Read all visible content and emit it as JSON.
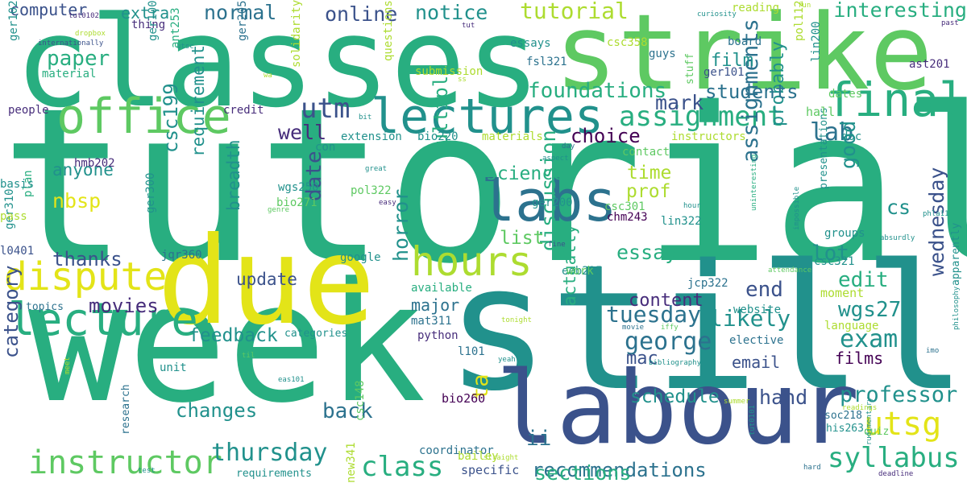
{
  "word_cloud": {
    "colors": {
      "background": "#ffffff",
      "purple": "#440154",
      "indigo": "#472d7b",
      "blue": "#3b528b",
      "steel": "#2c728e",
      "teal": "#21918c",
      "green": "#28ae80",
      "lightgreen": "#5ec962",
      "lime": "#addc30",
      "yellow": "#e3e418"
    },
    "words": [
      {
        "text": "tutorials"
      },
      {
        "text": "classes"
      },
      {
        "text": "strike"
      },
      {
        "text": "still"
      },
      {
        "text": "week"
      },
      {
        "text": "due"
      },
      {
        "text": "labour"
      },
      {
        "text": "lectures"
      },
      {
        "text": "office"
      },
      {
        "text": "final"
      },
      {
        "text": "labs"
      },
      {
        "text": "hours"
      },
      {
        "text": "lecture"
      },
      {
        "text": "dispute"
      },
      {
        "text": "instructor"
      },
      {
        "text": "assignment"
      },
      {
        "text": "utm"
      },
      {
        "text": "tutorial"
      },
      {
        "text": "paper"
      },
      {
        "text": "foundations"
      },
      {
        "text": "online"
      },
      {
        "text": "notice"
      },
      {
        "text": "normal"
      },
      {
        "text": "mark"
      },
      {
        "text": "interesting"
      },
      {
        "text": "lab"
      },
      {
        "text": "exam"
      },
      {
        "text": "utsg"
      },
      {
        "text": "syllabus"
      },
      {
        "text": "professor"
      },
      {
        "text": "class"
      },
      {
        "text": "thursday"
      },
      {
        "text": "recommendations"
      },
      {
        "text": "george"
      },
      {
        "text": "tuesday"
      },
      {
        "text": "likely"
      },
      {
        "text": "wednesday"
      },
      {
        "text": "hand"
      },
      {
        "text": "sections"
      },
      {
        "text": "schedule"
      },
      {
        "text": "changes"
      },
      {
        "text": "category"
      },
      {
        "text": "movies"
      },
      {
        "text": "feedback"
      },
      {
        "text": "back"
      },
      {
        "text": "ta"
      },
      {
        "text": "ii"
      },
      {
        "text": "date"
      },
      {
        "text": "discussion"
      },
      {
        "text": "horror"
      },
      {
        "text": "multiple"
      },
      {
        "text": "essay"
      },
      {
        "text": "edit"
      },
      {
        "text": "content"
      },
      {
        "text": "wgs271"
      },
      {
        "text": "end"
      },
      {
        "text": "lot"
      },
      {
        "text": "well"
      },
      {
        "text": "good"
      },
      {
        "text": "probably"
      },
      {
        "text": "assignments"
      },
      {
        "text": "time"
      },
      {
        "text": "prof"
      },
      {
        "text": "choice"
      },
      {
        "text": "students"
      },
      {
        "text": "film"
      },
      {
        "text": "cs"
      },
      {
        "text": "science"
      },
      {
        "text": "list"
      },
      {
        "text": "anyone"
      },
      {
        "text": "csc199"
      },
      {
        "text": "requirement"
      },
      {
        "text": "breadth"
      },
      {
        "text": "update"
      },
      {
        "text": "thanks"
      },
      {
        "text": "nbsp"
      },
      {
        "text": "extra"
      },
      {
        "text": "computer"
      },
      {
        "text": "major"
      },
      {
        "text": "email"
      },
      {
        "text": "films"
      },
      {
        "text": "mac"
      },
      {
        "text": "actually"
      },
      {
        "text": "coordinator"
      },
      {
        "text": "specific"
      },
      {
        "text": "bailey"
      },
      {
        "text": "requirements"
      },
      {
        "text": "categories"
      },
      {
        "text": "elective"
      },
      {
        "text": "language"
      },
      {
        "text": "apparently"
      },
      {
        "text": "groups"
      },
      {
        "text": "csc321"
      },
      {
        "text": "presentations"
      },
      {
        "text": "quiz"
      },
      {
        "text": "bio260"
      },
      {
        "text": "soc218"
      },
      {
        "text": "his263"
      },
      {
        "text": "new341"
      },
      {
        "text": "csc148"
      },
      {
        "text": "unit"
      },
      {
        "text": "research"
      },
      {
        "text": "topics"
      },
      {
        "text": "jqr360"
      },
      {
        "text": "google"
      },
      {
        "text": "eeb225"
      },
      {
        "text": "mat311"
      },
      {
        "text": "python"
      },
      {
        "text": "l101"
      },
      {
        "text": "l0401"
      },
      {
        "text": "available"
      },
      {
        "text": "work"
      },
      {
        "text": "jcp322"
      },
      {
        "text": "moment"
      },
      {
        "text": "website"
      },
      {
        "text": "chm243"
      },
      {
        "text": "lin322"
      },
      {
        "text": "csc301"
      },
      {
        "text": "ger200"
      },
      {
        "text": "pol322"
      },
      {
        "text": "bio271"
      },
      {
        "text": "wgs250"
      },
      {
        "text": "ger300"
      },
      {
        "text": "ger310"
      },
      {
        "text": "plan"
      },
      {
        "text": "pass"
      },
      {
        "text": "basis"
      },
      {
        "text": "hmb202"
      },
      {
        "text": "people"
      },
      {
        "text": "credit"
      },
      {
        "text": "con"
      },
      {
        "text": "extension"
      },
      {
        "text": "bio220"
      },
      {
        "text": "materials"
      },
      {
        "text": "instructors"
      },
      {
        "text": "contact"
      },
      {
        "text": "hall"
      },
      {
        "text": "doc"
      },
      {
        "text": "dates"
      },
      {
        "text": "stuff"
      },
      {
        "text": "guys"
      },
      {
        "text": "ger101"
      },
      {
        "text": "board"
      },
      {
        "text": "csc358"
      },
      {
        "text": "essays"
      },
      {
        "text": "fsl321"
      },
      {
        "text": "pol112"
      },
      {
        "text": "lin200"
      },
      {
        "text": "ast201"
      },
      {
        "text": "reading"
      },
      {
        "text": "curiosity"
      },
      {
        "text": "fun"
      },
      {
        "text": "tut"
      },
      {
        "text": "past"
      },
      {
        "text": "tut0102"
      },
      {
        "text": "dropbox"
      },
      {
        "text": "internationally"
      },
      {
        "text": "thing"
      },
      {
        "text": "ger100"
      },
      {
        "text": "utsc"
      },
      {
        "text": "ger205"
      },
      {
        "text": "ant253"
      },
      {
        "text": "solidarity"
      },
      {
        "text": "questions"
      },
      {
        "text": "submission"
      },
      {
        "text": "material"
      },
      {
        "text": "ger102"
      },
      {
        "text": "wa"
      },
      {
        "text": "ss"
      },
      {
        "text": "bit"
      },
      {
        "text": "day"
      },
      {
        "text": "aspect"
      },
      {
        "text": "great"
      },
      {
        "text": "easy"
      },
      {
        "text": "genre"
      },
      {
        "text": "fine"
      },
      {
        "text": "hour"
      },
      {
        "text": "impossible"
      },
      {
        "text": "uninteresting"
      },
      {
        "text": "absurdly"
      },
      {
        "text": "phla11"
      },
      {
        "text": "attendance"
      },
      {
        "text": "philosophy"
      },
      {
        "text": "tonight"
      },
      {
        "text": "movie"
      },
      {
        "text": "iffy"
      },
      {
        "text": "imo"
      },
      {
        "text": "yeah"
      },
      {
        "text": "bibliography"
      },
      {
        "text": "til"
      },
      {
        "text": "meet"
      },
      {
        "text": "eas101"
      },
      {
        "text": "test"
      },
      {
        "text": "straight"
      },
      {
        "text": "summer"
      },
      {
        "text": "rudimentary"
      },
      {
        "text": "tut0101"
      },
      {
        "text": "readings"
      },
      {
        "text": "hard"
      },
      {
        "text": "deadline"
      }
    ]
  }
}
